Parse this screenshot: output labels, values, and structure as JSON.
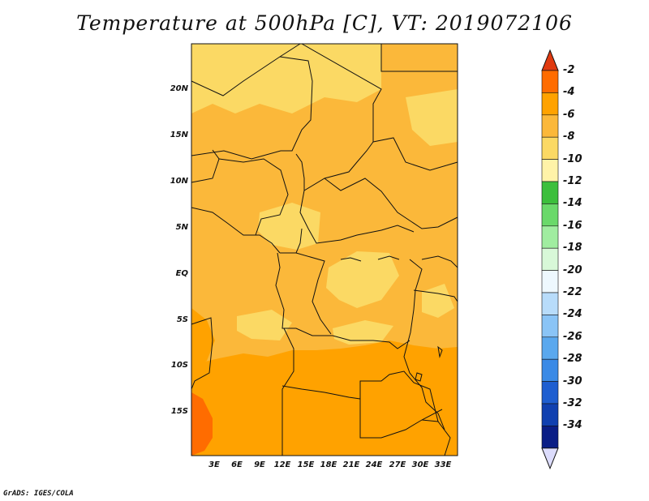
{
  "title": "Temperature at 500hPa [C], VT: 2019072106",
  "credit": "GrADS: IGES/COLA",
  "map": {
    "lat_labels": [
      "20N",
      "15N",
      "10N",
      "5N",
      "EQ",
      "5S",
      "10S",
      "15S"
    ],
    "lon_labels": [
      "3E",
      "6E",
      "9E",
      "12E",
      "15E",
      "18E",
      "21E",
      "24E",
      "27E",
      "30E",
      "33E"
    ]
  },
  "colorbar": {
    "labels": [
      "-2",
      "-4",
      "-6",
      "-8",
      "-10",
      "-12",
      "-14",
      "-16",
      "-18",
      "-20",
      "-22",
      "-24",
      "-26",
      "-28",
      "-30",
      "-32",
      "-34"
    ],
    "colors": [
      "#e03a10",
      "#ff6c00",
      "#ffa200",
      "#fbb83a",
      "#fbd964",
      "#fff3a8",
      "#3cbf3c",
      "#6ad96a",
      "#a0eda0",
      "#d8f8d8",
      "#eef8fe",
      "#b8dcfa",
      "#8ac4f6",
      "#5aa8ee",
      "#3a8ae6",
      "#1e5ed0",
      "#1040b0",
      "#0a1e86",
      "#dcdcfc"
    ]
  },
  "fields": {
    "colors": {
      "temp_8_to_6": "#fbb83a",
      "temp_10_to_8": "#fbd964",
      "temp_6_to_4": "#ffa200",
      "temp_4_to_2": "#ff6c00"
    }
  }
}
